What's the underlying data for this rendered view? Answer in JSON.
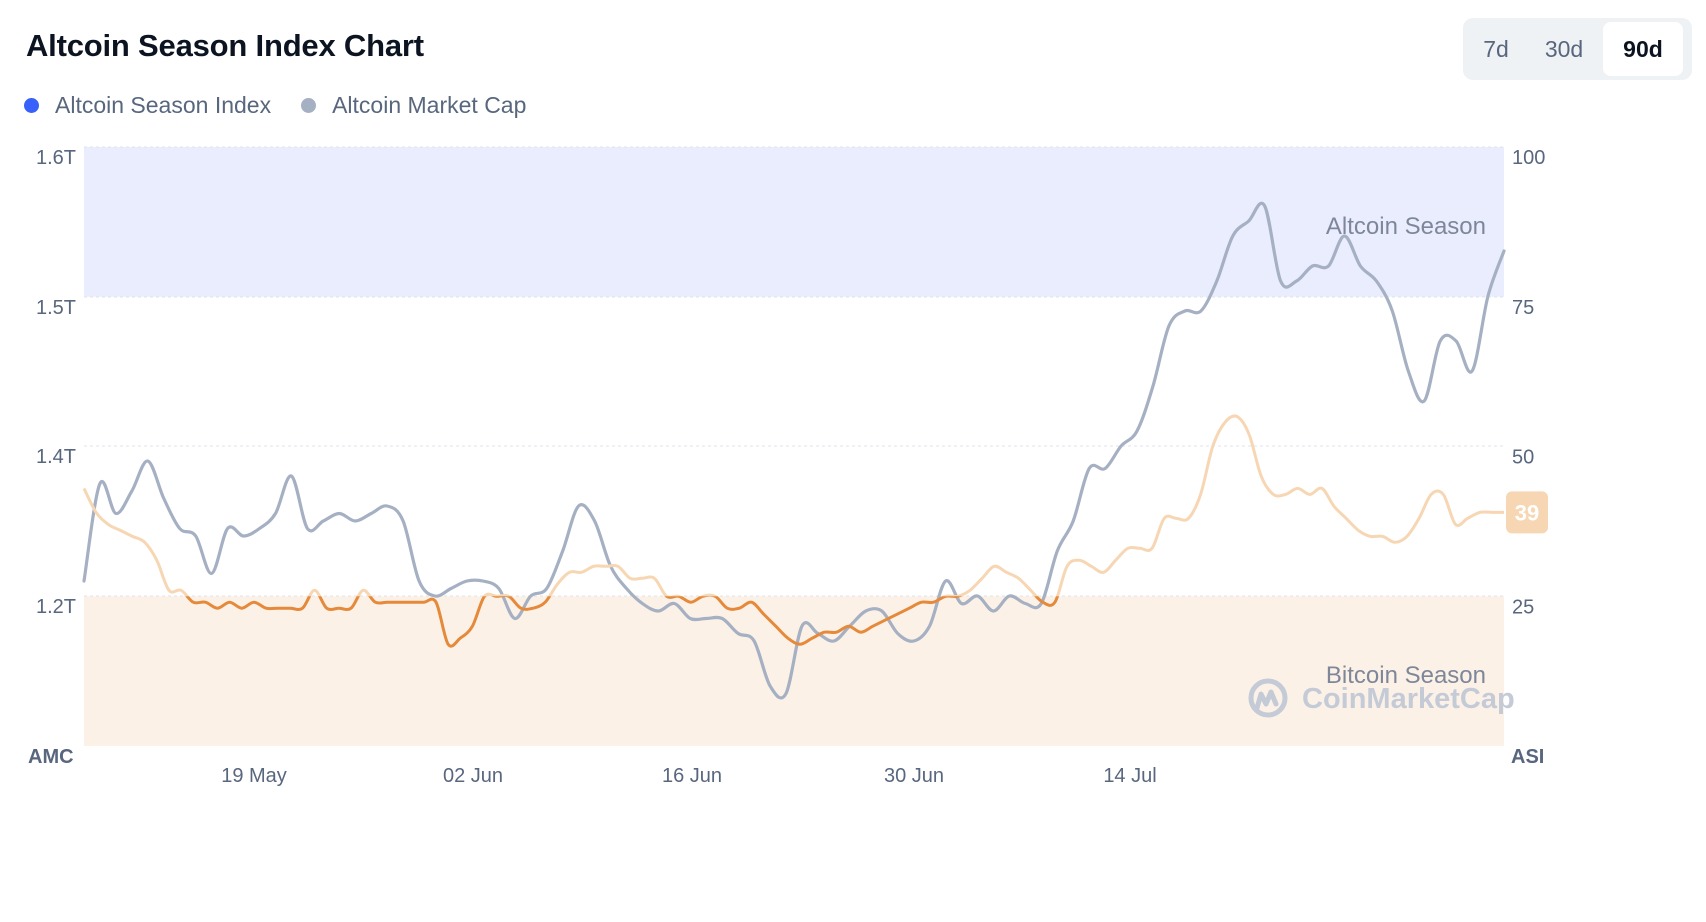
{
  "header": {
    "title": "Altcoin Season Index Chart",
    "legend": [
      {
        "label": "Altcoin Season Index",
        "color": "#3861fb"
      },
      {
        "label": "Altcoin Market Cap",
        "color": "#a6b0c3"
      }
    ],
    "ranges": [
      "7d",
      "30d",
      "90d"
    ],
    "active_range": "90d"
  },
  "chart_data": {
    "type": "line",
    "x_ticks": [
      "19 May",
      "02 Jun",
      "16 Jun",
      "30 Jun",
      "14 Jul"
    ],
    "left_axis": {
      "label": "AMC",
      "ticks": [
        "1.6T",
        "1.5T",
        "1.4T",
        "1.2T"
      ]
    },
    "right_axis": {
      "label": "ASI",
      "ticks": [
        "100",
        "75",
        "50",
        "25"
      ],
      "ylim": [
        0,
        100
      ]
    },
    "zones": [
      {
        "label": "Altcoin Season",
        "from": 75,
        "to": 100,
        "color": "#eaedfd"
      },
      {
        "label": "Bitcoin Season",
        "from": 0,
        "to": 25,
        "color": "#fcf1e7"
      }
    ],
    "current_value_badge": "39",
    "watermark": "CoinMarketCap",
    "series": [
      {
        "name": "Altcoin Season Index",
        "axis": "right",
        "color_in_zone": "#e5893a",
        "color_out_zone": "#f7d6b3",
        "values": [
          43,
          39,
          37,
          36,
          35,
          34,
          31,
          26,
          26,
          24,
          24,
          23,
          24,
          23,
          24,
          23,
          23,
          23,
          23,
          26,
          23,
          23,
          23,
          26,
          24,
          24,
          24,
          24,
          24,
          24,
          17,
          18,
          20,
          25,
          25,
          25,
          23,
          23,
          24,
          27,
          29,
          29,
          30,
          30,
          30,
          28,
          28,
          28,
          25,
          25,
          24,
          25,
          25,
          23,
          23,
          24,
          22,
          20,
          18,
          17,
          18,
          19,
          19,
          20,
          19,
          20,
          21,
          22,
          23,
          24,
          24,
          25,
          25,
          26,
          28,
          30,
          29,
          28,
          26,
          24,
          24,
          30,
          31,
          30,
          29,
          31,
          33,
          33,
          33,
          38,
          38,
          38,
          42,
          50,
          54,
          55,
          52,
          45,
          42,
          42,
          43,
          42,
          43,
          40,
          38,
          36,
          35,
          35,
          34,
          35,
          38,
          42,
          42,
          37,
          38,
          39,
          39,
          39
        ]
      },
      {
        "name": "Altcoin Market Cap",
        "axis": "left",
        "color": "#a6b0c3",
        "values": [
          1.22,
          1.35,
          1.31,
          1.34,
          1.38,
          1.33,
          1.29,
          1.28,
          1.23,
          1.29,
          1.28,
          1.29,
          1.31,
          1.36,
          1.29,
          1.3,
          1.31,
          1.3,
          1.31,
          1.32,
          1.3,
          1.22,
          1.2,
          1.21,
          1.22,
          1.22,
          1.21,
          1.17,
          1.2,
          1.21,
          1.26,
          1.32,
          1.3,
          1.24,
          1.21,
          1.19,
          1.18,
          1.19,
          1.17,
          1.17,
          1.17,
          1.15,
          1.14,
          1.08,
          1.07,
          1.16,
          1.15,
          1.14,
          1.16,
          1.18,
          1.18,
          1.15,
          1.14,
          1.16,
          1.22,
          1.19,
          1.2,
          1.18,
          1.2,
          1.19,
          1.19,
          1.26,
          1.3,
          1.37,
          1.37,
          1.4,
          1.41,
          1.44,
          1.48,
          1.49,
          1.49,
          1.51,
          1.54,
          1.55,
          1.56,
          1.51,
          1.51,
          1.52,
          1.52,
          1.54,
          1.52,
          1.51,
          1.49,
          1.45,
          1.43,
          1.47,
          1.47,
          1.45,
          1.5,
          1.53
        ]
      }
    ]
  }
}
